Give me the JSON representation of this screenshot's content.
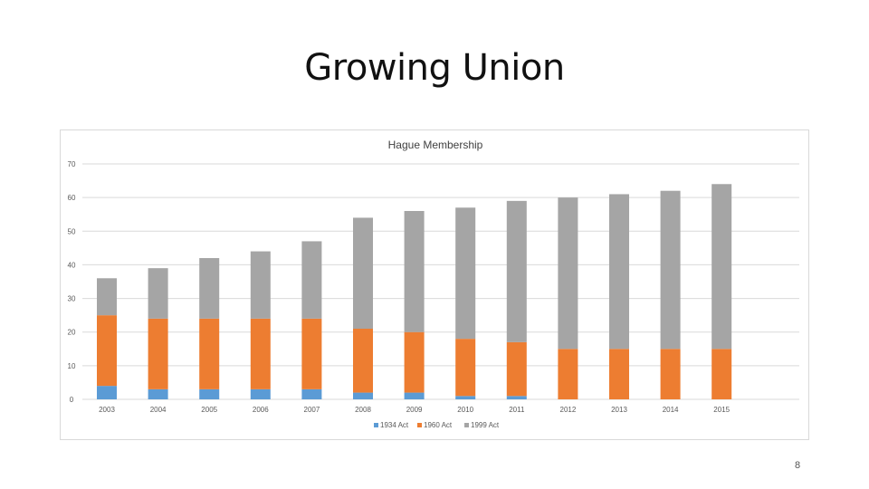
{
  "slide": {
    "title": "Growing Union",
    "page_number": "8"
  },
  "chart_data": {
    "type": "bar",
    "stacked": true,
    "title": "Hague Membership",
    "xlabel": "",
    "ylabel": "",
    "ylim": [
      0,
      70
    ],
    "yticks": [
      0,
      10,
      20,
      30,
      40,
      50,
      60,
      70
    ],
    "grid": true,
    "legend_position": "bottom",
    "categories": [
      "2003",
      "2004",
      "2005",
      "2006",
      "2007",
      "2008",
      "2009",
      "2010",
      "2011",
      "2012",
      "2013",
      "2014",
      "2015"
    ],
    "series": [
      {
        "name": "1934 Act",
        "color": "#5b9bd5",
        "values": [
          4,
          3,
          3,
          3,
          3,
          2,
          2,
          1,
          1,
          0,
          0,
          0,
          0
        ]
      },
      {
        "name": "1960 Act",
        "color": "#ed7d31",
        "values": [
          21,
          21,
          21,
          21,
          21,
          19,
          18,
          17,
          16,
          15,
          15,
          15,
          15
        ]
      },
      {
        "name": "1999 Act",
        "color": "#a5a5a5",
        "values": [
          11,
          15,
          18,
          20,
          23,
          33,
          36,
          39,
          42,
          45,
          46,
          47,
          49
        ]
      }
    ]
  }
}
